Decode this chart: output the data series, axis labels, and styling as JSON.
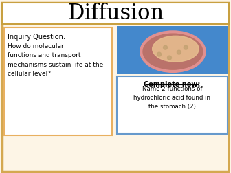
{
  "title": "Diffusion",
  "title_fontsize": 22,
  "bg_color": "#fdf5e6",
  "bg_outer_border": "#d4a850",
  "title_area_color": "#ffffff",
  "title_area_border": "#c8a040",
  "left_box_color": "#ffffff",
  "left_box_border": "#e8b060",
  "right_bottom_box_color": "#ffffff",
  "right_bottom_box_border": "#6699cc",
  "inquiry_label": "Inquiry Question:",
  "inquiry_text": "How do molecular\nfunctions and transport\nmechanisms sustain life at the\ncellular level?",
  "complete_label": "Complete now:",
  "complete_text": "Name 2 functions of\nhydrochloric acid found in\nthe stomach (2)",
  "stomach_img_color": "#4488cc",
  "stomach_body_color": "#c87060",
  "stomach_inner_color": "#e8c090",
  "stomach_border_color": "#e09090",
  "stomach_dot_color": "#c0a070"
}
